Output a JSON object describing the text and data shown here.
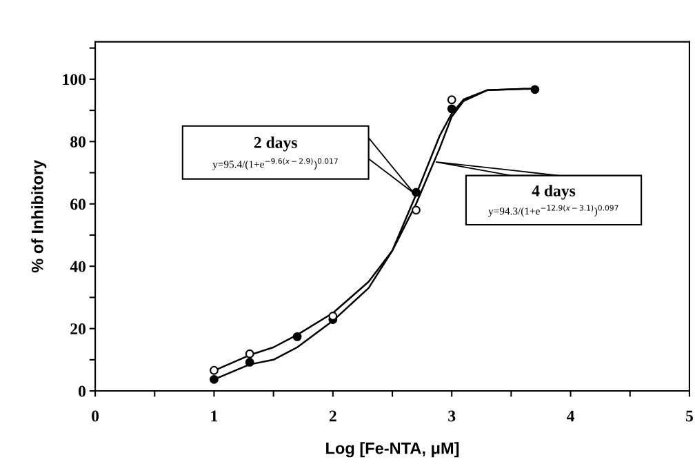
{
  "chart_data": {
    "type": "scatter",
    "xlabel": "Log [Fe-NTA, μM]",
    "ylabel": "% of Inhibitory",
    "xlim": [
      0,
      5
    ],
    "ylim": [
      0,
      112
    ],
    "xticks": [
      0,
      {
        "value": 0.5,
        "label": null
      },
      1,
      {
        "value": 1.5,
        "label": null
      },
      2,
      {
        "value": 2.5,
        "label": null
      },
      3,
      {
        "value": 3.5,
        "label": null
      },
      4,
      {
        "value": 4.5,
        "label": null
      },
      5
    ],
    "yticks": [
      0,
      {
        "value": 10,
        "label": null
      },
      20,
      {
        "value": 30,
        "label": null
      },
      40,
      {
        "value": 50,
        "label": null
      },
      60,
      {
        "value": 70,
        "label": null
      },
      80,
      {
        "value": 90,
        "label": null
      },
      100,
      {
        "value": 110,
        "label": null
      }
    ],
    "grid": false,
    "marker": "circle",
    "series": [
      {
        "type": "line",
        "color": "#000000",
        "marker": "none",
        "x": [
          1,
          1.3,
          1.5,
          1.7,
          2.0,
          2.3,
          2.5,
          2.7,
          2.9,
          3.0,
          3.1,
          3.3,
          3.7
        ],
        "values": [
          6.5,
          11.5,
          14,
          18,
          25,
          35,
          45,
          60,
          78,
          88,
          93,
          96.5,
          97
        ]
      },
      {
        "type": "line",
        "color": "#000000",
        "marker": "none",
        "x": [
          1,
          1.3,
          1.5,
          1.7,
          2.0,
          2.3,
          2.5,
          2.7,
          2.9,
          3.0,
          3.1,
          3.3,
          3.7
        ],
        "values": [
          3.7,
          8.5,
          10,
          14,
          22.5,
          33,
          45,
          63,
          82,
          89,
          93.5,
          96.5,
          97
        ]
      },
      {
        "color": "#ffffff",
        "x": [
          1,
          1.3,
          2.0,
          2.7,
          3.0
        ],
        "values": [
          6.6,
          11.9,
          24,
          58,
          93.4
        ]
      },
      {
        "color": "#000000",
        "x": [
          1,
          1.3,
          1.7,
          2.0,
          2.7,
          3.0,
          3.7
        ],
        "values": [
          3.7,
          9.2,
          17.4,
          22.9,
          63.7,
          90.5,
          96.7
        ]
      }
    ],
    "annotations": [
      "2 days",
      "y=95.4/(1+e$^{−9.6(x−2.9)}$)$^{0.017}$",
      "4 days",
      "y=94.3/(1+e$^{−12.9(x−3.1)}$)$^{0.097}$"
    ]
  }
}
